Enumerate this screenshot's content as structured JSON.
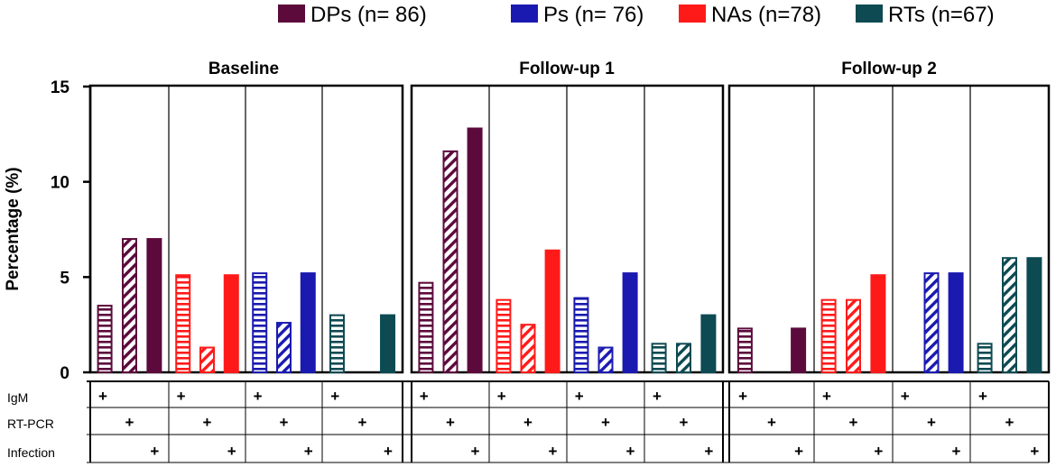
{
  "chart_data": {
    "type": "bar",
    "ylabel": "Percentage (%)",
    "ylim": [
      0,
      15
    ],
    "yticks": [
      "0",
      "5",
      "10",
      "15"
    ],
    "legend": [
      {
        "key": "DPs",
        "label": "DPs (n= 86)",
        "color": "#5c0a3c"
      },
      {
        "key": "Ps",
        "label": "Ps (n= 76)",
        "color": "#1a1ab0"
      },
      {
        "key": "NAs",
        "label": "NAs (n=78)",
        "color": "#ff1a1a"
      },
      {
        "key": "RTs",
        "label": "RTs (n=67)",
        "color": "#0d4a52"
      }
    ],
    "bar_types": [
      {
        "key": "IgM",
        "pattern": "horizontal-hatch"
      },
      {
        "key": "RT-PCR",
        "pattern": "diagonal-hatch"
      },
      {
        "key": "Infection",
        "pattern": "solid"
      }
    ],
    "panels": [
      {
        "title": "Baseline",
        "groups": [
          {
            "series": "DPs",
            "values": [
              3.5,
              7.0,
              7.0
            ]
          },
          {
            "series": "NAs",
            "values": [
              5.1,
              1.3,
              5.1
            ]
          },
          {
            "series": "Ps",
            "values": [
              5.2,
              2.6,
              5.2
            ]
          },
          {
            "series": "RTs",
            "values": [
              3.0,
              0,
              3.0
            ]
          }
        ]
      },
      {
        "title": "Follow-up 1",
        "groups": [
          {
            "series": "DPs",
            "values": [
              4.7,
              11.6,
              12.8
            ]
          },
          {
            "series": "NAs",
            "values": [
              3.8,
              2.5,
              6.4
            ]
          },
          {
            "series": "Ps",
            "values": [
              3.9,
              1.3,
              5.2
            ]
          },
          {
            "series": "RTs",
            "values": [
              1.5,
              1.5,
              3.0
            ]
          }
        ]
      },
      {
        "title": "Follow-up 2",
        "groups": [
          {
            "series": "DPs",
            "values": [
              2.3,
              0,
              2.3
            ]
          },
          {
            "series": "NAs",
            "values": [
              3.8,
              3.8,
              5.1
            ]
          },
          {
            "series": "Ps",
            "values": [
              0,
              5.2,
              5.2
            ]
          },
          {
            "series": "RTs",
            "values": [
              1.5,
              6.0,
              6.0
            ]
          }
        ]
      }
    ],
    "table": {
      "rows": [
        "IgM",
        "RT-PCR",
        "Infection"
      ],
      "mark": "+"
    }
  }
}
